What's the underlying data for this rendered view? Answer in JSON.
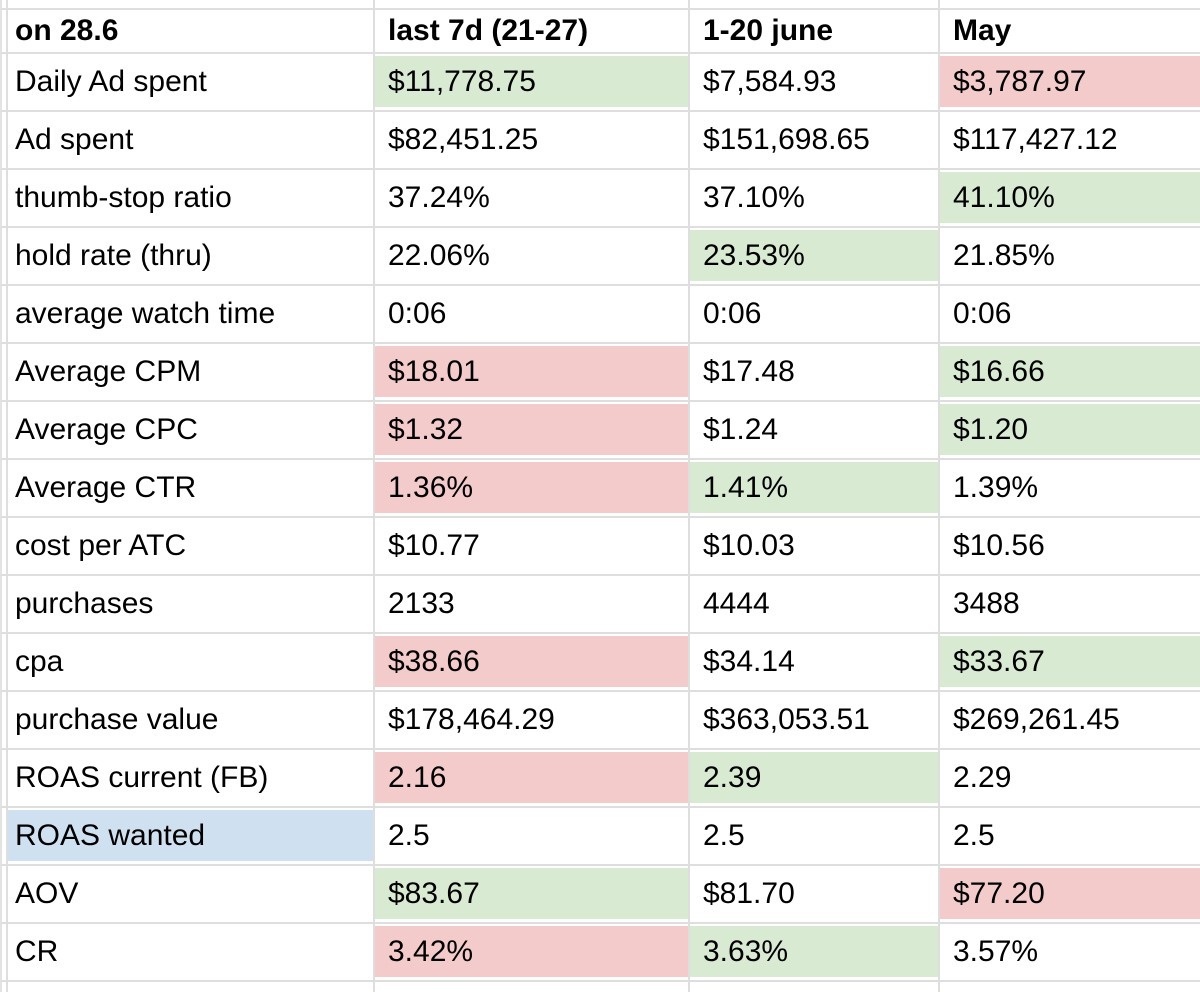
{
  "sheet": {
    "corner_header": "on 28.6",
    "columns": [
      "last 7d (21-27)",
      "1-20 june",
      "May"
    ],
    "rows": [
      {
        "label": "Daily Ad spent",
        "label_fill": "none",
        "values": [
          "$11,778.75",
          "$7,584.93",
          "$3,787.97"
        ],
        "fills": [
          "green",
          "none",
          "red"
        ]
      },
      {
        "label": "Ad spent",
        "label_fill": "none",
        "values": [
          "$82,451.25",
          "$151,698.65",
          "$117,427.12"
        ],
        "fills": [
          "none",
          "none",
          "none"
        ]
      },
      {
        "label": "thumb-stop ratio",
        "label_fill": "none",
        "values": [
          "37.24%",
          "37.10%",
          "41.10%"
        ],
        "fills": [
          "none",
          "none",
          "green"
        ]
      },
      {
        "label": "hold rate (thru)",
        "label_fill": "none",
        "values": [
          "22.06%",
          "23.53%",
          "21.85%"
        ],
        "fills": [
          "none",
          "green",
          "none"
        ]
      },
      {
        "label": "average watch time",
        "label_fill": "none",
        "values": [
          "0:06",
          "0:06",
          "0:06"
        ],
        "fills": [
          "none",
          "none",
          "none"
        ]
      },
      {
        "label": "Average CPM",
        "label_fill": "none",
        "values": [
          "$18.01",
          "$17.48",
          "$16.66"
        ],
        "fills": [
          "red",
          "none",
          "green"
        ]
      },
      {
        "label": "Average CPC",
        "label_fill": "none",
        "values": [
          "$1.32",
          "$1.24",
          "$1.20"
        ],
        "fills": [
          "red",
          "none",
          "green"
        ]
      },
      {
        "label": "Average CTR",
        "label_fill": "none",
        "values": [
          "1.36%",
          "1.41%",
          "1.39%"
        ],
        "fills": [
          "red",
          "green",
          "none"
        ]
      },
      {
        "label": "cost per ATC",
        "label_fill": "none",
        "values": [
          "$10.77",
          "$10.03",
          "$10.56"
        ],
        "fills": [
          "none",
          "none",
          "none"
        ]
      },
      {
        "label": "purchases",
        "label_fill": "none",
        "values": [
          "2133",
          "4444",
          "3488"
        ],
        "fills": [
          "none",
          "none",
          "none"
        ]
      },
      {
        "label": "cpa",
        "label_fill": "none",
        "values": [
          "$38.66",
          "$34.14",
          "$33.67"
        ],
        "fills": [
          "red",
          "none",
          "green"
        ]
      },
      {
        "label": "purchase value",
        "label_fill": "none",
        "values": [
          "$178,464.29",
          "$363,053.51",
          "$269,261.45"
        ],
        "fills": [
          "none",
          "none",
          "none"
        ]
      },
      {
        "label": "ROAS current (FB)",
        "label_fill": "none",
        "values": [
          "2.16",
          "2.39",
          "2.29"
        ],
        "fills": [
          "red",
          "green",
          "none"
        ]
      },
      {
        "label": "ROAS wanted",
        "label_fill": "blue",
        "values": [
          "2.5",
          "2.5",
          "2.5"
        ],
        "fills": [
          "none",
          "none",
          "none"
        ]
      },
      {
        "label": "AOV",
        "label_fill": "none",
        "values": [
          "$83.67",
          "$81.70",
          "$77.20"
        ],
        "fills": [
          "green",
          "none",
          "red"
        ]
      },
      {
        "label": "CR",
        "label_fill": "none",
        "values": [
          "3.42%",
          "3.63%",
          "3.57%"
        ],
        "fills": [
          "red",
          "green",
          "none"
        ]
      }
    ]
  },
  "colors": {
    "green": "#d9ead3",
    "red": "#f2cbca",
    "blue": "#cfe0f1"
  }
}
